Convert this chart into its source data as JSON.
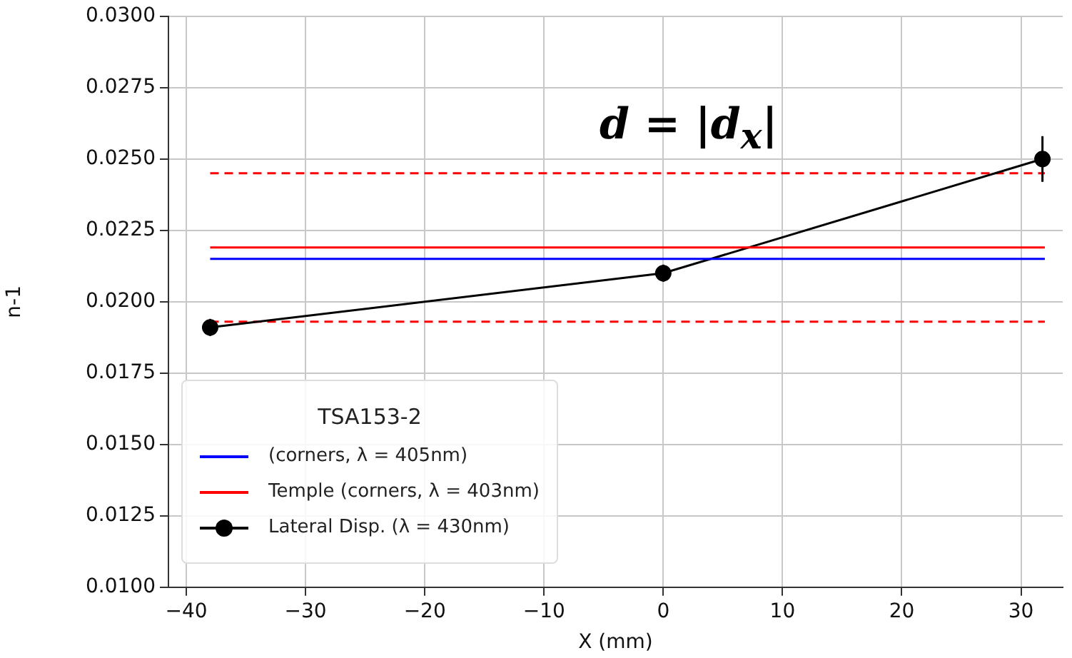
{
  "chart_data": {
    "type": "line",
    "xlabel": "X (mm)",
    "ylabel": "n-1",
    "legend_title": "TSA153-2",
    "annotations": [
      "d = |d$_{x}$|"
    ],
    "xlim": [
      -41.5,
      33.5
    ],
    "xticks": [
      {
        "value": -40,
        "label": "−40"
      },
      {
        "value": -30,
        "label": "−30"
      },
      {
        "value": -20,
        "label": "−20"
      },
      {
        "value": -10,
        "label": "−10"
      },
      0,
      10,
      20,
      30
    ],
    "ylim": [
      0.01,
      0.03
    ],
    "yticks": [
      {
        "value": 0.01,
        "label": "0.0100"
      },
      {
        "value": 0.0125,
        "label": "0.0125"
      },
      {
        "value": 0.015,
        "label": "0.0150"
      },
      {
        "value": 0.0175,
        "label": "0.0175"
      },
      {
        "value": 0.02,
        "label": "0.0200"
      },
      {
        "value": 0.0225,
        "label": "0.0225"
      },
      {
        "value": 0.025,
        "label": "0.0250"
      },
      {
        "value": 0.0275,
        "label": "0.0275"
      },
      {
        "value": 0.03,
        "label": "0.0300"
      }
    ],
    "grid": true,
    "legend": "bottom left",
    "series": [
      {
        "name": "(corners, λ = 405nm)",
        "color": "#0000ff",
        "x": [
          -38,
          32
        ],
        "values": [
          0.0215,
          0.0215
        ],
        "marker": "none",
        "line_style": "solid"
      },
      {
        "name": "Temple (corners, λ = 403nm)",
        "color": "#ff0000",
        "x": [
          -38,
          32
        ],
        "values": [
          0.0219,
          0.0219
        ],
        "marker": "none",
        "line_style": "solid"
      },
      {
        "name": "Lateral Disp. (λ = 430nm)",
        "color": "#000000",
        "x": [
          -38,
          0,
          31.8
        ],
        "values": [
          0.0191,
          0.021,
          0.025
        ],
        "errors": [
          0.0003,
          0.0003,
          0.0008
        ],
        "marker": "circle",
        "line_style": "solid"
      },
      {
        "color": "#ff0000",
        "x": [
          -38,
          32
        ],
        "values": [
          0.0245,
          0.0245
        ],
        "marker": "none",
        "line_style": "dashed"
      },
      {
        "color": "#ff0000",
        "x": [
          -38,
          32
        ],
        "values": [
          0.0193,
          0.0193
        ],
        "marker": "none",
        "line_style": "dashed"
      }
    ]
  }
}
